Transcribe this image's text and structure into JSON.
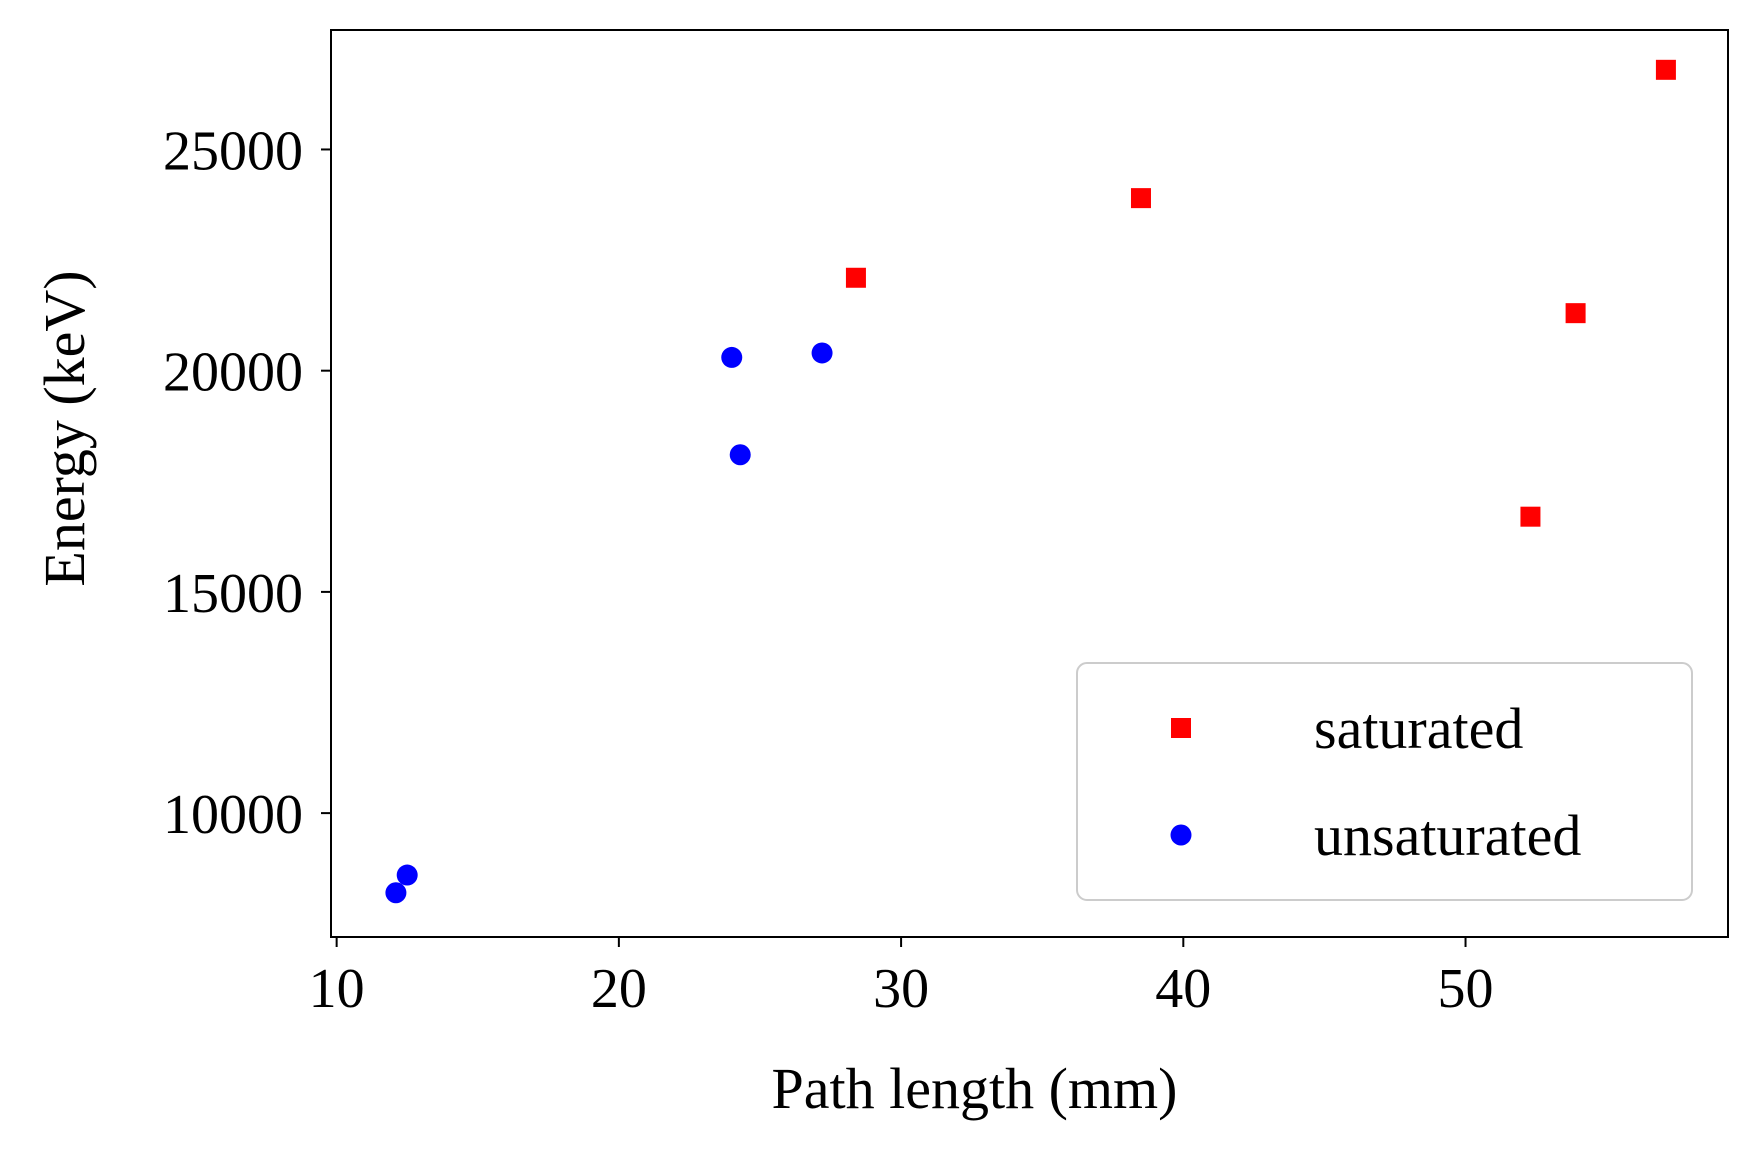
{
  "chart_data": {
    "type": "scatter",
    "title": "",
    "xlabel": "Path length (mm)",
    "ylabel": "Energy (keV)",
    "xlim": [
      9.8,
      59.3
    ],
    "ylim": [
      7200,
      27700
    ],
    "xticks": [
      10,
      20,
      30,
      40,
      50
    ],
    "yticks": [
      10000,
      15000,
      20000,
      25000
    ],
    "grid": false,
    "legend_position": "lower-right",
    "series": [
      {
        "name": "saturated",
        "marker": "square",
        "color": "#ff0000",
        "points": [
          {
            "x": 28.4,
            "y": 22100
          },
          {
            "x": 38.5,
            "y": 23900
          },
          {
            "x": 52.3,
            "y": 16700
          },
          {
            "x": 53.9,
            "y": 21300
          },
          {
            "x": 57.1,
            "y": 26800
          }
        ]
      },
      {
        "name": "unsaturated",
        "marker": "circle",
        "color": "#0000ff",
        "points": [
          {
            "x": 12.1,
            "y": 8200
          },
          {
            "x": 12.5,
            "y": 8600
          },
          {
            "x": 24.0,
            "y": 20300
          },
          {
            "x": 24.3,
            "y": 18100
          },
          {
            "x": 27.2,
            "y": 20400
          }
        ]
      }
    ]
  }
}
